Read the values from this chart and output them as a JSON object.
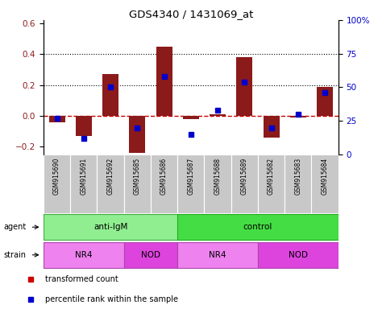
{
  "title": "GDS4340 / 1431069_at",
  "samples": [
    "GSM915690",
    "GSM915691",
    "GSM915692",
    "GSM915685",
    "GSM915686",
    "GSM915687",
    "GSM915688",
    "GSM915689",
    "GSM915682",
    "GSM915683",
    "GSM915684"
  ],
  "bar_values": [
    -0.04,
    -0.13,
    0.27,
    -0.24,
    0.45,
    -0.02,
    0.01,
    0.38,
    -0.14,
    -0.01,
    0.19
  ],
  "dot_values": [
    0.27,
    0.12,
    0.5,
    0.2,
    0.58,
    0.15,
    0.33,
    0.54,
    0.2,
    0.3,
    0.46
  ],
  "ylim": [
    -0.25,
    0.62
  ],
  "yticks_left": [
    -0.2,
    0.0,
    0.2,
    0.4,
    0.6
  ],
  "yticks_right": [
    0,
    25,
    50,
    75,
    100
  ],
  "hlines": [
    0.2,
    0.4
  ],
  "bar_color": "#8B1A1A",
  "dot_color": "#0000CC",
  "zero_line_color": "#CC0000",
  "grid_line_color": "#000000",
  "agent_groups": [
    {
      "label": "anti-IgM",
      "start": 0,
      "end": 5,
      "color": "#90EE90",
      "edge": "#44AA44"
    },
    {
      "label": "control",
      "start": 5,
      "end": 11,
      "color": "#44DD44",
      "edge": "#22AA22"
    }
  ],
  "strain_groups": [
    {
      "label": "NR4",
      "start": 0,
      "end": 3,
      "color": "#EE82EE",
      "edge": "#AA44AA"
    },
    {
      "label": "NOD",
      "start": 3,
      "end": 5,
      "color": "#DD44DD",
      "edge": "#AA44AA"
    },
    {
      "label": "NR4",
      "start": 5,
      "end": 8,
      "color": "#EE82EE",
      "edge": "#AA44AA"
    },
    {
      "label": "NOD",
      "start": 8,
      "end": 11,
      "color": "#DD44DD",
      "edge": "#AA44AA"
    }
  ],
  "legend_items": [
    {
      "label": "transformed count",
      "color": "#CC0000"
    },
    {
      "label": "percentile rank within the sample",
      "color": "#0000CC"
    }
  ],
  "sample_label_bg": "#C8C8C8",
  "figsize": [
    4.69,
    3.84
  ],
  "dpi": 100
}
